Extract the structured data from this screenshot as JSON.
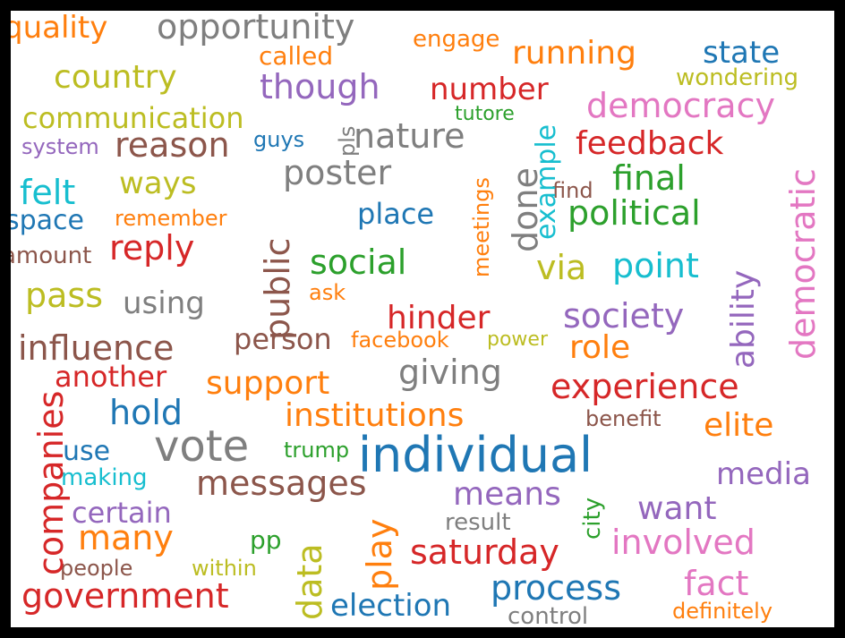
{
  "palette": {
    "blue": "#1f77b4",
    "orange": "#ff7f0e",
    "green": "#2ca02c",
    "red": "#d62728",
    "purple": "#9467bd",
    "brown": "#8c564b",
    "pink": "#e377c2",
    "gray": "#7f7f7f",
    "olive": "#bcbd22",
    "cyan": "#17becf"
  },
  "words": [
    {
      "text": "individual",
      "color": "blue"
    },
    {
      "text": "vote",
      "color": "gray"
    },
    {
      "text": "opportunity",
      "color": "gray"
    },
    {
      "text": "institutions",
      "color": "orange"
    },
    {
      "text": "country",
      "color": "olive"
    },
    {
      "text": "running",
      "color": "orange"
    },
    {
      "text": "state",
      "color": "blue"
    },
    {
      "text": "democracy",
      "color": "pink"
    },
    {
      "text": "number",
      "color": "red"
    },
    {
      "text": "though",
      "color": "purple"
    },
    {
      "text": "nature",
      "color": "gray"
    },
    {
      "text": "feedback",
      "color": "red"
    },
    {
      "text": "reason",
      "color": "brown"
    },
    {
      "text": "communication",
      "color": "olive"
    },
    {
      "text": "poster",
      "color": "gray"
    },
    {
      "text": "final",
      "color": "green"
    },
    {
      "text": "political",
      "color": "green"
    },
    {
      "text": "felt",
      "color": "cyan"
    },
    {
      "text": "ways",
      "color": "olive"
    },
    {
      "text": "social",
      "color": "green"
    },
    {
      "text": "via",
      "color": "olive"
    },
    {
      "text": "point",
      "color": "cyan"
    },
    {
      "text": "reply",
      "color": "red"
    },
    {
      "text": "place",
      "color": "blue"
    },
    {
      "text": "hinder",
      "color": "red"
    },
    {
      "text": "society",
      "color": "purple"
    },
    {
      "text": "influence",
      "color": "brown"
    },
    {
      "text": "role",
      "color": "orange"
    },
    {
      "text": "giving",
      "color": "gray"
    },
    {
      "text": "experience",
      "color": "red"
    },
    {
      "text": "support",
      "color": "orange"
    },
    {
      "text": "hold",
      "color": "blue"
    },
    {
      "text": "elite",
      "color": "orange"
    },
    {
      "text": "messages",
      "color": "brown"
    },
    {
      "text": "means",
      "color": "purple"
    },
    {
      "text": "want",
      "color": "purple"
    },
    {
      "text": "many",
      "color": "orange"
    },
    {
      "text": "saturday",
      "color": "red"
    },
    {
      "text": "involved",
      "color": "pink"
    },
    {
      "text": "process",
      "color": "blue"
    },
    {
      "text": "fact",
      "color": "pink"
    },
    {
      "text": "government",
      "color": "red"
    },
    {
      "text": "election",
      "color": "blue"
    },
    {
      "text": "pass",
      "color": "olive"
    },
    {
      "text": "using",
      "color": "gray"
    },
    {
      "text": "person",
      "color": "brown"
    },
    {
      "text": "another",
      "color": "red"
    },
    {
      "text": "use",
      "color": "blue"
    },
    {
      "text": "certain",
      "color": "purple"
    },
    {
      "text": "media",
      "color": "purple"
    },
    {
      "text": "space",
      "color": "blue"
    },
    {
      "text": "quality",
      "color": "orange"
    },
    {
      "text": "engage",
      "color": "orange"
    },
    {
      "text": "called",
      "color": "orange"
    },
    {
      "text": "wondering",
      "color": "olive"
    },
    {
      "text": "tutore",
      "color": "green"
    },
    {
      "text": "system",
      "color": "purple"
    },
    {
      "text": "guys",
      "color": "blue"
    },
    {
      "text": "find",
      "color": "brown"
    },
    {
      "text": "remember",
      "color": "orange"
    },
    {
      "text": "amount",
      "color": "brown"
    },
    {
      "text": "ask",
      "color": "orange"
    },
    {
      "text": "facebook",
      "color": "orange"
    },
    {
      "text": "power",
      "color": "olive"
    },
    {
      "text": "benefit",
      "color": "brown"
    },
    {
      "text": "trump",
      "color": "green"
    },
    {
      "text": "making",
      "color": "cyan"
    },
    {
      "text": "result",
      "color": "gray"
    },
    {
      "text": "pp",
      "color": "green"
    },
    {
      "text": "people",
      "color": "brown"
    },
    {
      "text": "within",
      "color": "olive"
    },
    {
      "text": "control",
      "color": "gray"
    },
    {
      "text": "definitely",
      "color": "orange"
    },
    {
      "text": "democratic",
      "color": "pink"
    },
    {
      "text": "ability",
      "color": "purple"
    },
    {
      "text": "public",
      "color": "brown"
    },
    {
      "text": "done",
      "color": "gray"
    },
    {
      "text": "example",
      "color": "cyan"
    },
    {
      "text": "meetings",
      "color": "orange"
    },
    {
      "text": "pls",
      "color": "gray"
    },
    {
      "text": "companies",
      "color": "red"
    },
    {
      "text": "data",
      "color": "olive"
    },
    {
      "text": "play",
      "color": "orange"
    },
    {
      "text": "city",
      "color": "green"
    }
  ]
}
